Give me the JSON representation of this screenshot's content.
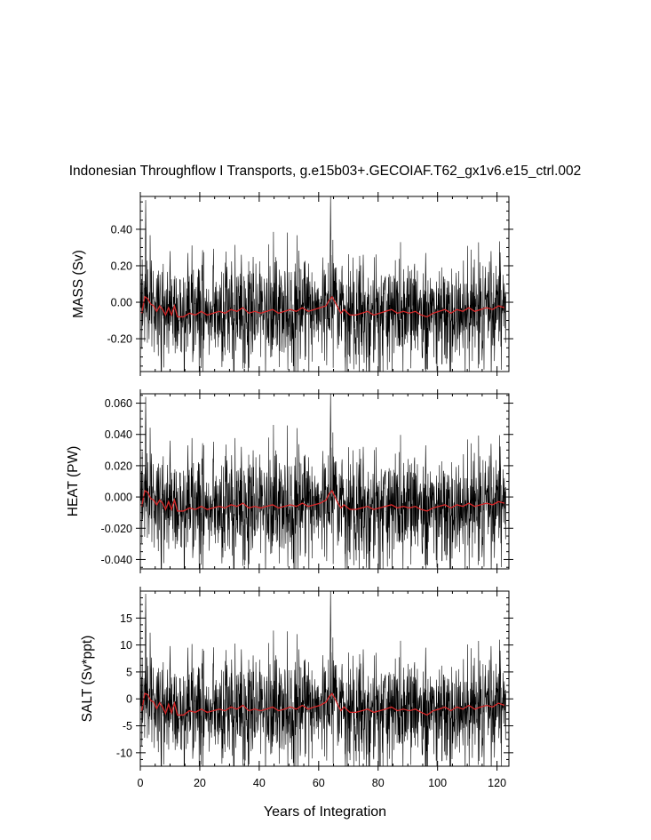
{
  "title": "Indonesian Throughflow I Transports, g.e15b03+.GECOIAF.T62_gx1v6.e15_ctrl.002",
  "xlabel": "Years of Integration",
  "colors": {
    "monthly": "#000000",
    "annual": "#d62728"
  },
  "chart_data": [
    {
      "type": "line",
      "panel": "mass",
      "ylabel": "MASS (Sv)",
      "xlim": [
        0,
        124
      ],
      "ylim": [
        -0.38,
        0.58
      ],
      "xticks": [
        0,
        20,
        40,
        60,
        80,
        100,
        120
      ],
      "xtick_labels": [
        "0",
        "20",
        "40",
        "60",
        "80",
        "100",
        "120"
      ],
      "yticks": [
        -0.2,
        0.0,
        0.2,
        0.4
      ],
      "ytick_labels": [
        "-0.20",
        "0.00",
        "0.20",
        "0.40"
      ],
      "series": [
        {
          "style": "monthly",
          "mean": -0.06,
          "amplitude": 0.15,
          "peaks": [
            [
              1.8,
              0.56
            ],
            [
              64,
              0.58
            ],
            [
              7,
              -0.38
            ],
            [
              69,
              -0.38
            ],
            [
              10,
              0.28
            ],
            [
              16,
              0.27
            ],
            [
              34,
              0.26
            ],
            [
              75,
              0.26
            ],
            [
              96,
              0.27
            ],
            [
              118,
              0.28
            ]
          ]
        },
        {
          "style": "annual",
          "x": [
            0.5,
            1.5,
            2.5,
            3.5,
            4.5,
            5.5,
            6.5,
            7.5,
            8.5,
            9.5,
            10.5,
            11.5,
            12.5,
            14.5,
            16.5,
            18.5,
            20.5,
            22.5,
            24.5,
            26.5,
            28.5,
            30.5,
            32.5,
            34.5,
            36.5,
            38.5,
            40.5,
            42.5,
            44.5,
            46.5,
            48.5,
            50.5,
            52.5,
            54.5,
            56.5,
            58.5,
            60.5,
            62.5,
            63.5,
            64.5,
            65.5,
            66.5,
            67.5,
            68.5,
            70.5,
            72.5,
            74.5,
            76.5,
            78.5,
            80.5,
            82.5,
            84.5,
            86.5,
            88.5,
            90.5,
            92.5,
            94.5,
            96.5,
            98.5,
            100.5,
            102.5,
            104.5,
            106.5,
            108.5,
            110.5,
            112.5,
            114.5,
            116.5,
            118.5,
            120.5,
            122.5
          ],
          "y": [
            -0.06,
            0.03,
            0.02,
            -0.01,
            -0.02,
            -0.05,
            -0.02,
            -0.04,
            -0.07,
            -0.03,
            -0.07,
            -0.02,
            -0.08,
            -0.08,
            -0.06,
            -0.07,
            -0.05,
            -0.07,
            -0.06,
            -0.05,
            -0.06,
            -0.04,
            -0.05,
            -0.03,
            -0.06,
            -0.05,
            -0.06,
            -0.05,
            -0.04,
            -0.06,
            -0.05,
            -0.04,
            -0.05,
            -0.03,
            -0.05,
            -0.04,
            -0.03,
            -0.02,
            0.01,
            0.03,
            0.0,
            -0.03,
            -0.06,
            -0.04,
            -0.07,
            -0.07,
            -0.06,
            -0.05,
            -0.07,
            -0.06,
            -0.05,
            -0.04,
            -0.06,
            -0.05,
            -0.06,
            -0.05,
            -0.07,
            -0.08,
            -0.06,
            -0.05,
            -0.04,
            -0.06,
            -0.04,
            -0.05,
            -0.03,
            -0.05,
            -0.04,
            -0.03,
            -0.04,
            -0.02,
            -0.03
          ]
        }
      ]
    },
    {
      "type": "line",
      "panel": "heat",
      "ylabel": "HEAT (PW)",
      "xlim": [
        0,
        124
      ],
      "ylim": [
        -0.046,
        0.066
      ],
      "xticks": [
        0,
        20,
        40,
        60,
        80,
        100,
        120
      ],
      "xtick_labels": [
        "0",
        "20",
        "40",
        "60",
        "80",
        "100",
        "120"
      ],
      "yticks": [
        -0.04,
        -0.02,
        0.0,
        0.02,
        0.04,
        0.06
      ],
      "ytick_labels": [
        "-0.040",
        "-0.020",
        "0.000",
        "0.020",
        "0.040",
        "0.060"
      ],
      "series": [
        {
          "style": "monthly",
          "mean": -0.006,
          "amplitude": 0.018,
          "peaks": [
            [
              1.8,
              0.064
            ],
            [
              64,
              0.066
            ],
            [
              7,
              -0.046
            ],
            [
              69,
              -0.046
            ],
            [
              10,
              0.036
            ],
            [
              16,
              0.033
            ],
            [
              34,
              0.032
            ],
            [
              75,
              0.032
            ],
            [
              96,
              0.033
            ],
            [
              118,
              0.034
            ]
          ]
        },
        {
          "style": "annual",
          "x": [
            0.5,
            1.5,
            2.5,
            3.5,
            4.5,
            5.5,
            6.5,
            7.5,
            8.5,
            9.5,
            10.5,
            11.5,
            12.5,
            14.5,
            16.5,
            18.5,
            20.5,
            22.5,
            24.5,
            26.5,
            28.5,
            30.5,
            32.5,
            34.5,
            36.5,
            38.5,
            40.5,
            42.5,
            44.5,
            46.5,
            48.5,
            50.5,
            52.5,
            54.5,
            56.5,
            58.5,
            60.5,
            62.5,
            63.5,
            64.5,
            65.5,
            66.5,
            67.5,
            68.5,
            70.5,
            72.5,
            74.5,
            76.5,
            78.5,
            80.5,
            82.5,
            84.5,
            86.5,
            88.5,
            90.5,
            92.5,
            94.5,
            96.5,
            98.5,
            100.5,
            102.5,
            104.5,
            106.5,
            108.5,
            110.5,
            112.5,
            114.5,
            116.5,
            118.5,
            120.5,
            122.5
          ],
          "y": [
            -0.006,
            0.004,
            0.003,
            -0.001,
            -0.002,
            -0.005,
            -0.002,
            -0.004,
            -0.008,
            -0.003,
            -0.008,
            -0.002,
            -0.009,
            -0.009,
            -0.007,
            -0.008,
            -0.006,
            -0.008,
            -0.007,
            -0.006,
            -0.007,
            -0.005,
            -0.006,
            -0.004,
            -0.007,
            -0.006,
            -0.007,
            -0.006,
            -0.005,
            -0.007,
            -0.006,
            -0.005,
            -0.006,
            -0.004,
            -0.006,
            -0.005,
            -0.004,
            -0.002,
            0.002,
            0.004,
            0.0,
            -0.004,
            -0.007,
            -0.005,
            -0.008,
            -0.008,
            -0.007,
            -0.006,
            -0.008,
            -0.007,
            -0.006,
            -0.005,
            -0.007,
            -0.006,
            -0.007,
            -0.006,
            -0.008,
            -0.009,
            -0.007,
            -0.006,
            -0.005,
            -0.007,
            -0.005,
            -0.006,
            -0.004,
            -0.006,
            -0.005,
            -0.004,
            -0.005,
            -0.003,
            -0.004
          ]
        }
      ]
    },
    {
      "type": "line",
      "panel": "salt",
      "ylabel": "SALT (Sv*ppt)",
      "xlim": [
        0,
        124
      ],
      "ylim": [
        -12.5,
        20
      ],
      "xticks": [
        0,
        20,
        40,
        60,
        80,
        100,
        120
      ],
      "xtick_labels": [
        "0",
        "20",
        "40",
        "60",
        "80",
        "100",
        "120"
      ],
      "yticks": [
        -10,
        -5,
        0,
        5,
        10,
        15
      ],
      "ytick_labels": [
        "-10",
        "-5",
        "0",
        "5",
        "10",
        "15"
      ],
      "series": [
        {
          "style": "monthly",
          "mean": -2.0,
          "amplitude": 5.0,
          "peaks": [
            [
              1.8,
              19.5
            ],
            [
              64,
              20
            ],
            [
              7,
              -12.5
            ],
            [
              69,
              -12.5
            ],
            [
              10,
              9.8
            ],
            [
              16,
              9.5
            ],
            [
              34,
              9.2
            ],
            [
              75,
              9.2
            ],
            [
              96,
              9.5
            ],
            [
              118,
              9.8
            ]
          ]
        },
        {
          "style": "annual",
          "x": [
            0.5,
            1.5,
            2.5,
            3.5,
            4.5,
            5.5,
            6.5,
            7.5,
            8.5,
            9.5,
            10.5,
            11.5,
            12.5,
            14.5,
            16.5,
            18.5,
            20.5,
            22.5,
            24.5,
            26.5,
            28.5,
            30.5,
            32.5,
            34.5,
            36.5,
            38.5,
            40.5,
            42.5,
            44.5,
            46.5,
            48.5,
            50.5,
            52.5,
            54.5,
            56.5,
            58.5,
            60.5,
            62.5,
            63.5,
            64.5,
            65.5,
            66.5,
            67.5,
            68.5,
            70.5,
            72.5,
            74.5,
            76.5,
            78.5,
            80.5,
            82.5,
            84.5,
            86.5,
            88.5,
            90.5,
            92.5,
            94.5,
            96.5,
            98.5,
            100.5,
            102.5,
            104.5,
            106.5,
            108.5,
            110.5,
            112.5,
            114.5,
            116.5,
            118.5,
            120.5,
            122.5
          ],
          "y": [
            -2.2,
            1.0,
            0.8,
            -0.3,
            -0.6,
            -1.8,
            -0.7,
            -1.5,
            -2.7,
            -1.0,
            -2.6,
            -0.8,
            -3.0,
            -3.0,
            -2.2,
            -2.5,
            -1.9,
            -2.5,
            -2.2,
            -1.9,
            -2.2,
            -1.5,
            -1.9,
            -1.2,
            -2.2,
            -1.9,
            -2.2,
            -1.9,
            -1.5,
            -2.2,
            -1.9,
            -1.5,
            -1.9,
            -1.2,
            -1.9,
            -1.5,
            -1.2,
            -0.6,
            0.4,
            1.0,
            0.0,
            -1.2,
            -2.2,
            -1.5,
            -2.5,
            -2.5,
            -2.2,
            -1.9,
            -2.5,
            -2.2,
            -1.9,
            -1.5,
            -2.2,
            -1.9,
            -2.2,
            -1.9,
            -2.5,
            -3.0,
            -2.2,
            -1.9,
            -1.5,
            -2.2,
            -1.5,
            -1.9,
            -1.2,
            -1.9,
            -1.5,
            -1.2,
            -1.5,
            -0.8,
            -1.2
          ]
        }
      ]
    }
  ]
}
